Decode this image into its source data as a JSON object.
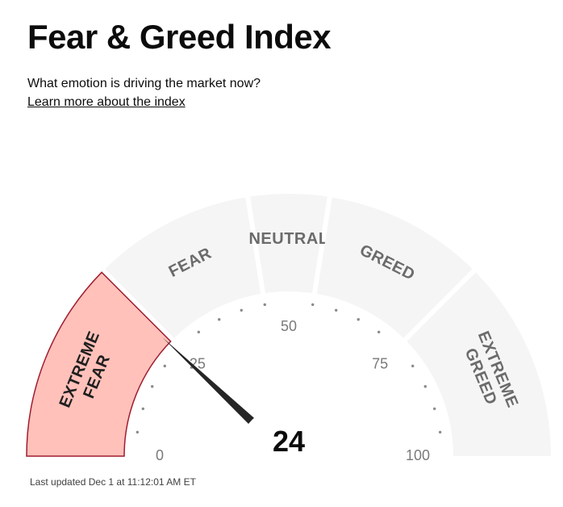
{
  "header": {
    "title": "Fear & Greed Index",
    "subtitle": "What emotion is driving the market now?",
    "learn_more": "Learn more about the index"
  },
  "gauge": {
    "value": 24,
    "value_text": "24",
    "min": 0,
    "max": 100,
    "active_zone": 0,
    "zones": [
      {
        "lines": [
          "EXTREME",
          "FEAR"
        ],
        "from": 0,
        "to": 25
      },
      {
        "lines": [
          "FEAR"
        ],
        "from": 25,
        "to": 45
      },
      {
        "lines": [
          "NEUTRAL"
        ],
        "from": 45,
        "to": 55
      },
      {
        "lines": [
          "GREED"
        ],
        "from": 55,
        "to": 75
      },
      {
        "lines": [
          "EXTREME",
          "GREED"
        ],
        "from": 75,
        "to": 100
      }
    ],
    "tick_labels": [
      "0",
      "25",
      "50",
      "75",
      "100"
    ],
    "colors": {
      "active_fill": "#ffc1ba",
      "active_stroke": "#a11c2f",
      "zone_fill": "#f5f5f5",
      "needle": "#262626"
    }
  },
  "footer": {
    "last_updated": "Last updated Dec 1 at 11:12:01 AM ET"
  }
}
